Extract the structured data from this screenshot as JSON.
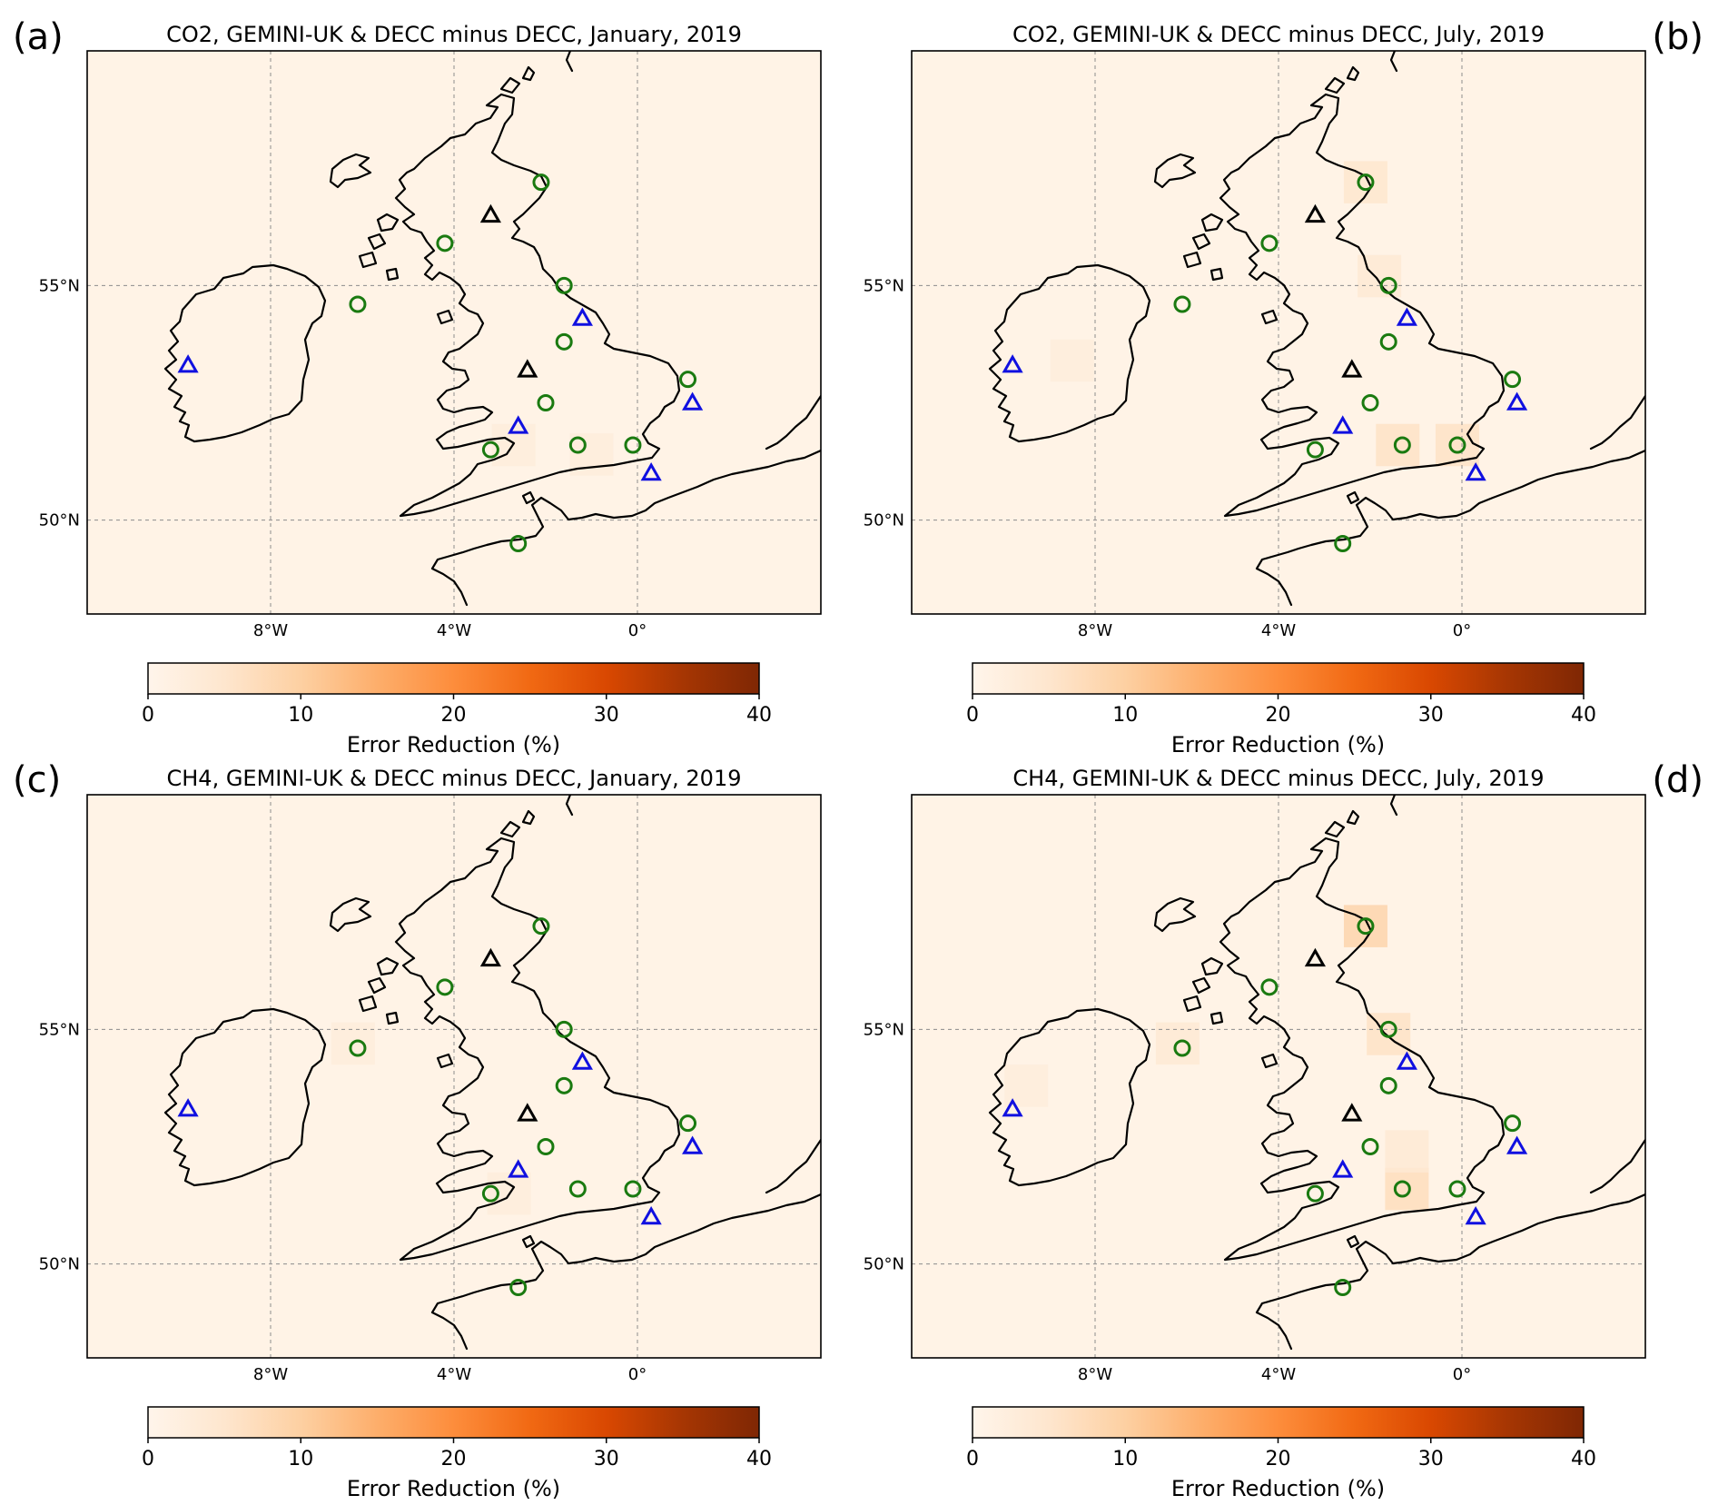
{
  "colorbar": {
    "label": "Error Reduction (%)",
    "ticks": [
      "0",
      "10",
      "20",
      "30",
      "40"
    ],
    "range": [
      0,
      40
    ],
    "colors": [
      "#fff5eb",
      "#fee6ce",
      "#fdd0a2",
      "#fdae6b",
      "#fd8d3c",
      "#f16913",
      "#d94801",
      "#a63603",
      "#7f2704"
    ]
  },
  "map_extent": {
    "lon": [
      -12,
      4
    ],
    "lat": [
      48,
      60
    ]
  },
  "colors": {
    "ocean_fill": "#fff3e6",
    "land_fill": "#fff3e6",
    "site_circle": "#1a7a10",
    "site_triangle_blue": "#1010e0",
    "site_triangle_black": "#000000"
  },
  "panels": [
    {
      "letter": "(a)",
      "title": "CO2, GEMINI-UK & DECC minus DECC, January, 2019",
      "lat_labels": [
        "55°N",
        "50°N"
      ],
      "lon_labels": [
        "8°W",
        "4°W",
        "0°"
      ],
      "hotspots": [
        {
          "lon": -2.7,
          "lat": 51.6,
          "value": 3
        },
        {
          "lon": -1.0,
          "lat": 51.4,
          "value": 3
        }
      ]
    },
    {
      "letter": "(b)",
      "title": "CO2, GEMINI-UK & DECC minus DECC, July, 2019",
      "lat_labels": [
        "55°N",
        "50°N"
      ],
      "lon_labels": [
        "8°W",
        "4°W",
        "0°"
      ],
      "hotspots": [
        {
          "lon": -2.1,
          "lat": 57.2,
          "value": 5
        },
        {
          "lon": -1.4,
          "lat": 51.6,
          "value": 6
        },
        {
          "lon": -0.1,
          "lat": 51.6,
          "value": 6
        },
        {
          "lon": -1.8,
          "lat": 55.2,
          "value": 4
        },
        {
          "lon": -8.5,
          "lat": 53.4,
          "value": 3
        }
      ]
    },
    {
      "letter": "(c)",
      "title": "CH4, GEMINI-UK & DECC minus DECC, January, 2019",
      "lat_labels": [
        "55°N",
        "50°N"
      ],
      "lon_labels": [
        "8°W",
        "4°W",
        "0°"
      ],
      "hotspots": [
        {
          "lon": -6.2,
          "lat": 54.7,
          "value": 3
        },
        {
          "lon": -2.8,
          "lat": 51.5,
          "value": 3
        }
      ]
    },
    {
      "letter": "(d)",
      "title": "CH4, GEMINI-UK & DECC minus DECC, July, 2019",
      "lat_labels": [
        "55°N",
        "50°N"
      ],
      "lon_labels": [
        "8°W",
        "4°W",
        "0°"
      ],
      "hotspots": [
        {
          "lon": -2.1,
          "lat": 57.2,
          "value": 9
        },
        {
          "lon": -1.6,
          "lat": 54.9,
          "value": 6
        },
        {
          "lon": -1.2,
          "lat": 51.6,
          "value": 7
        },
        {
          "lon": -6.2,
          "lat": 54.7,
          "value": 4
        },
        {
          "lon": -9.5,
          "lat": 53.8,
          "value": 3
        },
        {
          "lon": -1.2,
          "lat": 52.4,
          "value": 4
        }
      ]
    }
  ],
  "sites_circles": [
    {
      "lon": -2.1,
      "lat": 57.2
    },
    {
      "lon": -4.2,
      "lat": 55.9
    },
    {
      "lon": -1.6,
      "lat": 55.0
    },
    {
      "lon": -6.1,
      "lat": 54.6
    },
    {
      "lon": -1.6,
      "lat": 53.8
    },
    {
      "lon": 1.1,
      "lat": 53.0
    },
    {
      "lon": -2.0,
      "lat": 52.5
    },
    {
      "lon": -3.2,
      "lat": 51.5
    },
    {
      "lon": -1.3,
      "lat": 51.6
    },
    {
      "lon": -0.1,
      "lat": 51.6
    },
    {
      "lon": -2.6,
      "lat": 49.5
    }
  ],
  "sites_triangles_blue": [
    {
      "lon": -9.8,
      "lat": 53.3
    },
    {
      "lon": -1.2,
      "lat": 54.3
    },
    {
      "lon": 1.2,
      "lat": 52.5
    },
    {
      "lon": -2.6,
      "lat": 52.0
    },
    {
      "lon": 0.3,
      "lat": 51.0
    }
  ],
  "sites_triangles_black": [
    {
      "lon": -3.2,
      "lat": 56.5
    },
    {
      "lon": -2.4,
      "lat": 53.2
    }
  ]
}
